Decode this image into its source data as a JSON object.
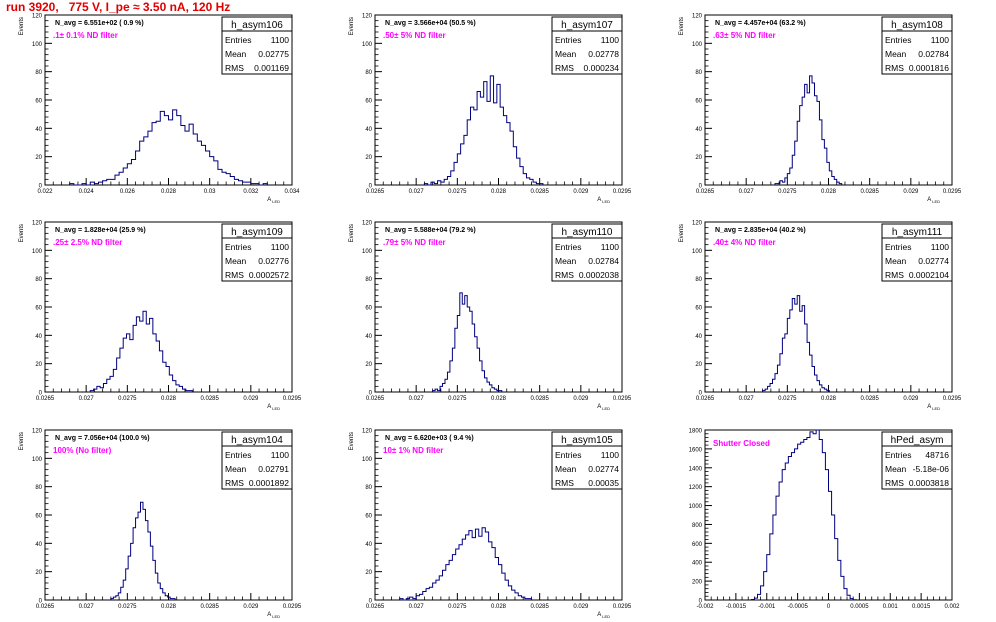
{
  "header": {
    "run_title": "run 3920,   775 V, I_pe ≈ 3.50 nA, 120 Hz"
  },
  "chart_data": [
    {
      "type": "histogram",
      "name": "h_asym106",
      "stats": [
        [
          "Entries",
          "1100"
        ],
        [
          "Mean",
          "0.02775"
        ],
        [
          "RMS",
          "0.001169"
        ]
      ],
      "navg_label": "N_avg = 6.551e+02 ( 0.9 %)",
      "filter_label": ".1± 0.1% ND filter",
      "ylabel": "Events",
      "xlabel": "A_LED",
      "xlim": [
        0.022,
        0.034
      ],
      "xticks": [
        "0.022",
        "0.024",
        "0.026",
        "0.028",
        "0.03",
        "0.032",
        "0.034"
      ],
      "ylim": [
        0,
        120
      ],
      "yticks": [
        "0",
        "20",
        "40",
        "60",
        "80",
        "100",
        "120"
      ],
      "hist": {
        "x_start": 0.0232,
        "bin_width": 0.0002,
        "counts": [
          1,
          0,
          0,
          1,
          0,
          2,
          1,
          2,
          3,
          4,
          4,
          7,
          9,
          12,
          15,
          18,
          24,
          31,
          34,
          38,
          44,
          45,
          52,
          49,
          46,
          53,
          49,
          42,
          38,
          43,
          36,
          31,
          28,
          24,
          20,
          17,
          11,
          9,
          8,
          6,
          4,
          3,
          2,
          2,
          1,
          1,
          0,
          1
        ]
      }
    },
    {
      "type": "histogram",
      "name": "h_asym107",
      "stats": [
        [
          "Entries",
          "1100"
        ],
        [
          "Mean",
          "0.02778"
        ],
        [
          "RMS",
          "0.000234"
        ]
      ],
      "navg_label": "N_avg = 3.566e+04 (50.5 %)",
      "filter_label": ".50± 5% ND filter",
      "ylabel": "Events",
      "xlabel": "A_LED",
      "xlim": [
        0.0265,
        0.0295
      ],
      "xticks": [
        "0.0265",
        "0.027",
        "0.0275",
        "0.028",
        "0.0285",
        "0.029",
        "0.0295"
      ],
      "ylim": [
        0,
        120
      ],
      "yticks": [
        "0",
        "20",
        "40",
        "60",
        "80",
        "100",
        "120"
      ],
      "hist": {
        "x_start": 0.0271,
        "bin_width": 4e-05,
        "counts": [
          1,
          0,
          2,
          1,
          3,
          2,
          4,
          6,
          10,
          16,
          22,
          29,
          35,
          46,
          55,
          53,
          66,
          62,
          73,
          59,
          77,
          58,
          71,
          55,
          49,
          44,
          38,
          27,
          19,
          13,
          8,
          5,
          4,
          2,
          1,
          1
        ]
      }
    },
    {
      "type": "histogram",
      "name": "h_asym108",
      "stats": [
        [
          "Entries",
          "1100"
        ],
        [
          "Mean",
          "0.02784"
        ],
        [
          "RMS",
          "0.0001816"
        ]
      ],
      "navg_label": "N_avg = 4.457e+04 (63.2 %)",
      "filter_label": ".63± 5% ND filter",
      "ylabel": "Events",
      "xlabel": "A_LED",
      "xlim": [
        0.0265,
        0.0295
      ],
      "xticks": [
        "0.0265",
        "0.027",
        "0.0275",
        "0.028",
        "0.0285",
        "0.029",
        "0.0295"
      ],
      "ylim": [
        0,
        120
      ],
      "yticks": [
        "0",
        "20",
        "40",
        "60",
        "80",
        "100",
        "120"
      ],
      "hist": {
        "x_start": 0.02735,
        "bin_width": 3e-05,
        "counts": [
          1,
          1,
          3,
          2,
          5,
          8,
          12,
          21,
          31,
          45,
          56,
          62,
          71,
          65,
          77,
          72,
          63,
          59,
          46,
          32,
          26,
          16,
          10,
          6,
          4,
          2,
          1
        ]
      }
    },
    {
      "type": "histogram",
      "name": "h_asym109",
      "stats": [
        [
          "Entries",
          "1100"
        ],
        [
          "Mean",
          "0.02776"
        ],
        [
          "RMS",
          "0.0002572"
        ]
      ],
      "navg_label": "N_avg = 1.828e+04 (25.9 %)",
      "filter_label": ".25± 2.5% ND filter",
      "ylabel": "Events",
      "xlabel": "A_LED",
      "xlim": [
        0.0265,
        0.0295
      ],
      "xticks": [
        "0.0265",
        "0.027",
        "0.0275",
        "0.028",
        "0.0285",
        "0.029",
        "0.0295"
      ],
      "ylim": [
        0,
        120
      ],
      "yticks": [
        "0",
        "20",
        "40",
        "60",
        "80",
        "100",
        "120"
      ],
      "hist": {
        "x_start": 0.02705,
        "bin_width": 4e-05,
        "counts": [
          1,
          2,
          4,
          3,
          6,
          9,
          11,
          16,
          24,
          31,
          38,
          41,
          37,
          47,
          53,
          50,
          57,
          48,
          52,
          41,
          36,
          29,
          21,
          18,
          12,
          8,
          5,
          4,
          2,
          1,
          1
        ]
      }
    },
    {
      "type": "histogram",
      "name": "h_asym110",
      "stats": [
        [
          "Entries",
          "1100"
        ],
        [
          "Mean",
          "0.02784"
        ],
        [
          "RMS",
          "0.0002038"
        ]
      ],
      "navg_label": "N_avg = 5.588e+04 (79.2 %)",
      "filter_label": ".79± 5% ND filter",
      "ylabel": "Events",
      "xlabel": "A_LED",
      "xlim": [
        0.0265,
        0.0295
      ],
      "xticks": [
        "0.0265",
        "0.027",
        "0.0275",
        "0.028",
        "0.0285",
        "0.029",
        "0.0295"
      ],
      "ylim": [
        0,
        120
      ],
      "yticks": [
        "0",
        "20",
        "40",
        "60",
        "80",
        "100",
        "120"
      ],
      "hist": {
        "x_start": 0.0272,
        "bin_width": 3e-05,
        "counts": [
          1,
          2,
          1,
          4,
          6,
          9,
          14,
          22,
          31,
          45,
          54,
          70,
          62,
          68,
          60,
          57,
          48,
          39,
          31,
          22,
          15,
          10,
          7,
          5,
          3,
          2,
          1,
          1
        ]
      }
    },
    {
      "type": "histogram",
      "name": "h_asym111",
      "stats": [
        [
          "Entries",
          "1100"
        ],
        [
          "Mean",
          "0.02774"
        ],
        [
          "RMS",
          "0.0002104"
        ]
      ],
      "navg_label": "N_avg = 2.835e+04 (40.2 %)",
      "filter_label": ".40± 4% ND filter",
      "ylabel": "Events",
      "xlabel": "A_LED",
      "xlim": [
        0.0265,
        0.0295
      ],
      "xticks": [
        "0.0265",
        "0.027",
        "0.0275",
        "0.028",
        "0.0285",
        "0.029",
        "0.0295"
      ],
      "ylim": [
        0,
        120
      ],
      "yticks": [
        "0",
        "20",
        "40",
        "60",
        "80",
        "100",
        "120"
      ],
      "hist": {
        "x_start": 0.0272,
        "bin_width": 3e-05,
        "counts": [
          1,
          2,
          4,
          6,
          9,
          13,
          19,
          27,
          38,
          41,
          52,
          58,
          66,
          62,
          68,
          57,
          61,
          48,
          35,
          26,
          18,
          12,
          8,
          5,
          3,
          2,
          1
        ]
      }
    },
    {
      "type": "histogram",
      "name": "h_asym104",
      "stats": [
        [
          "Entries",
          "1100"
        ],
        [
          "Mean",
          "0.02791"
        ],
        [
          "RMS",
          "0.0001892"
        ]
      ],
      "navg_label": "N_avg = 7.056e+04 (100.0 %)",
      "filter_label": "100% (No filter)",
      "ylabel": "Events",
      "xlabel": "A_LED",
      "xlim": [
        0.0265,
        0.0295
      ],
      "xticks": [
        "0.0265",
        "0.027",
        "0.0275",
        "0.028",
        "0.0285",
        "0.029",
        "0.0295"
      ],
      "ylim": [
        0,
        120
      ],
      "yticks": [
        "0",
        "20",
        "40",
        "60",
        "80",
        "100",
        "120"
      ],
      "hist": {
        "x_start": 0.0273,
        "bin_width": 3e-05,
        "counts": [
          1,
          2,
          3,
          5,
          9,
          14,
          22,
          31,
          40,
          51,
          58,
          62,
          69,
          64,
          56,
          48,
          38,
          28,
          19,
          12,
          8,
          5,
          3,
          2,
          1,
          1
        ]
      }
    },
    {
      "type": "histogram",
      "name": "h_asym105",
      "stats": [
        [
          "Entries",
          "1100"
        ],
        [
          "Mean",
          "0.02774"
        ],
        [
          "RMS",
          "0.00035"
        ]
      ],
      "navg_label": "N_avg = 6.620e+03 ( 9.4 %)",
      "filter_label": "10± 1% ND filter",
      "ylabel": "Events",
      "xlabel": "A_LED",
      "xlim": [
        0.0265,
        0.0295
      ],
      "xticks": [
        "0.0265",
        "0.027",
        "0.0275",
        "0.028",
        "0.0285",
        "0.029",
        "0.0295"
      ],
      "ylim": [
        0,
        120
      ],
      "yticks": [
        "0",
        "20",
        "40",
        "60",
        "80",
        "100",
        "120"
      ],
      "hist": {
        "x_start": 0.0268,
        "bin_width": 4e-05,
        "counts": [
          1,
          0,
          1,
          2,
          1,
          3,
          4,
          6,
          8,
          9,
          12,
          14,
          17,
          21,
          25,
          28,
          32,
          36,
          39,
          43,
          46,
          49,
          44,
          50,
          45,
          51,
          48,
          41,
          37,
          30,
          25,
          19,
          14,
          10,
          7,
          5,
          3,
          2,
          1,
          1
        ]
      }
    },
    {
      "type": "histogram",
      "name": "hPed_asym",
      "stats": [
        [
          "Entries",
          "48716"
        ],
        [
          "Mean",
          "-5.18e-06"
        ],
        [
          "RMS",
          "0.0003818"
        ]
      ],
      "navg_label": "",
      "filter_label": "Shutter Closed",
      "ylabel": "",
      "xlabel": "",
      "xlim": [
        -0.002,
        0.002
      ],
      "xticks": [
        "-0.002",
        "-0.0015",
        "-0.001",
        "-0.0005",
        "0",
        "0.0005",
        "0.001",
        "0.0015",
        "0.002"
      ],
      "ylim": [
        0,
        1800
      ],
      "yticks": [
        "0",
        "200",
        "400",
        "600",
        "800",
        "1000",
        "1200",
        "1400",
        "1600",
        "1800"
      ],
      "hist": {
        "x_start": -0.00125,
        "bin_width": 5e-05,
        "counts": [
          5,
          20,
          60,
          150,
          300,
          480,
          700,
          900,
          1100,
          1250,
          1380,
          1450,
          1520,
          1560,
          1600,
          1650,
          1670,
          1700,
          1720,
          1780,
          1760,
          1820,
          1700,
          1560,
          1380,
          1150,
          900,
          650,
          420,
          250,
          120,
          50,
          15,
          3
        ]
      }
    }
  ]
}
